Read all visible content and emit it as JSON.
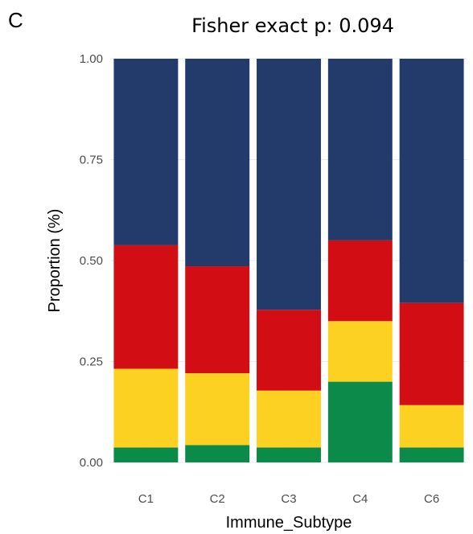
{
  "panel_label": "C",
  "chart_data": {
    "type": "bar",
    "stacked": true,
    "title": "Fisher exact p: 0.094",
    "xlabel": "Immune_Subtype",
    "ylabel": "Proportion (%)",
    "categories": [
      "C1",
      "C2",
      "C3",
      "C4",
      "C6"
    ],
    "ylim": [
      0,
      1
    ],
    "yticks": [
      "0.00",
      "0.25",
      "0.50",
      "0.75",
      "1.00"
    ],
    "grid": true,
    "legend": "none",
    "series": [
      {
        "color": "#0b8a49",
        "values": [
          0.037,
          0.043,
          0.037,
          0.2,
          0.037
        ]
      },
      {
        "color": "#fdd122",
        "values": [
          0.195,
          0.178,
          0.141,
          0.15,
          0.105
        ]
      },
      {
        "color": "#d20e14",
        "values": [
          0.306,
          0.265,
          0.2,
          0.2,
          0.253
        ]
      },
      {
        "color": "#233b6b",
        "values": [
          0.462,
          0.514,
          0.622,
          0.45,
          0.605
        ]
      }
    ]
  }
}
